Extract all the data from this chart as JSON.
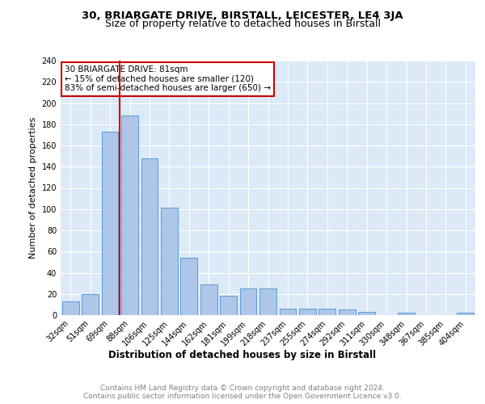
{
  "title1": "30, BRIARGATE DRIVE, BIRSTALL, LEICESTER, LE4 3JA",
  "title2": "Size of property relative to detached houses in Birstall",
  "xlabel": "Distribution of detached houses by size in Birstall",
  "ylabel": "Number of detached properties",
  "categories": [
    "32sqm",
    "51sqm",
    "69sqm",
    "88sqm",
    "106sqm",
    "125sqm",
    "144sqm",
    "162sqm",
    "181sqm",
    "199sqm",
    "218sqm",
    "237sqm",
    "255sqm",
    "274sqm",
    "292sqm",
    "311sqm",
    "330sqm",
    "348sqm",
    "367sqm",
    "385sqm",
    "404sqm"
  ],
  "values": [
    13,
    20,
    173,
    188,
    148,
    101,
    54,
    29,
    18,
    25,
    25,
    6,
    6,
    6,
    5,
    3,
    0,
    2,
    0,
    0,
    2
  ],
  "bar_color": "#aec6e8",
  "bar_edge_color": "#5b9bd5",
  "vline_x_index": 3,
  "vline_color": "#cc0000",
  "annotation_text": "30 BRIARGATE DRIVE: 81sqm\n← 15% of detached houses are smaller (120)\n83% of semi-detached houses are larger (650) →",
  "annotation_box_color": "#ffffff",
  "annotation_box_edge_color": "#cc0000",
  "background_color": "#dce9f7",
  "grid_color": "#ffffff",
  "footer1": "Contains HM Land Registry data © Crown copyright and database right 2024.",
  "footer2": "Contains public sector information licensed under the Open Government Licence v3.0.",
  "ylim": [
    0,
    240
  ],
  "yticks": [
    0,
    20,
    40,
    60,
    80,
    100,
    120,
    140,
    160,
    180,
    200,
    220,
    240
  ],
  "title1_fontsize": 9.5,
  "title2_fontsize": 9,
  "ylabel_fontsize": 8,
  "xlabel_fontsize": 8.5,
  "tick_fontsize": 7,
  "footer_fontsize": 6.5,
  "footer_color": "#808080"
}
